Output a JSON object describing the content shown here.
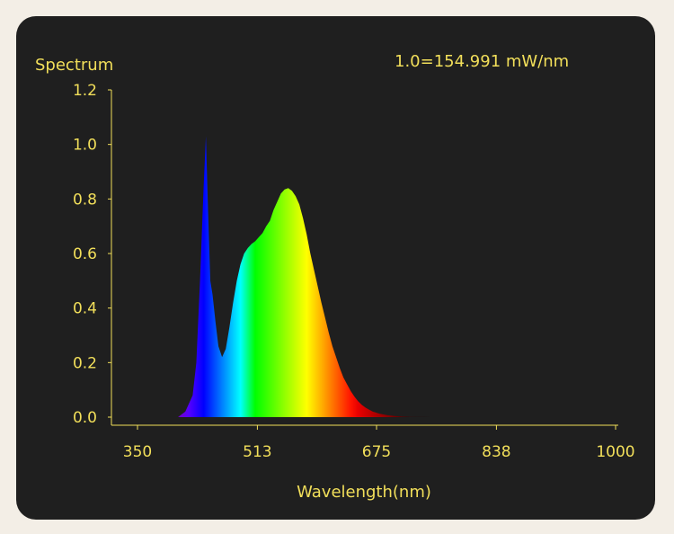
{
  "chart_data": {
    "type": "area",
    "title": "Spectrum",
    "annotation": "1.0=154.991 mW/nm",
    "xlabel": "Wavelength(nm)",
    "ylabel": "",
    "xlim": [
      350,
      1000
    ],
    "ylim": [
      0,
      1.2
    ],
    "x_ticks": [
      "350",
      "513",
      "675",
      "838",
      "1000"
    ],
    "y_ticks": [
      "0.0",
      "0.2",
      "0.4",
      "0.6",
      "0.8",
      "1.0",
      "1.2"
    ],
    "legend": "none",
    "grid": false,
    "colors": {
      "text": "#f2df5a",
      "axis": "#f2df5a",
      "background": "#1f1f1f"
    },
    "series": [
      {
        "x": [
          405,
          415,
          425,
          430,
          435,
          440,
          443,
          446,
          449,
          452,
          456,
          460,
          465,
          470,
          475,
          480,
          485,
          490,
          495,
          500,
          505,
          510,
          515,
          520,
          525,
          530,
          535,
          540,
          545,
          550,
          555,
          560,
          565,
          570,
          575,
          580,
          585,
          590,
          595,
          600,
          605,
          610,
          615,
          620,
          625,
          630,
          635,
          640,
          645,
          650,
          655,
          660,
          665,
          670,
          675,
          680,
          690,
          700,
          710,
          720,
          730,
          740,
          750,
          760,
          770
        ],
        "values": [
          0.0,
          0.02,
          0.08,
          0.2,
          0.5,
          0.85,
          1.03,
          0.75,
          0.5,
          0.45,
          0.35,
          0.26,
          0.22,
          0.25,
          0.33,
          0.42,
          0.5,
          0.56,
          0.6,
          0.62,
          0.635,
          0.645,
          0.66,
          0.675,
          0.7,
          0.72,
          0.76,
          0.79,
          0.82,
          0.835,
          0.84,
          0.83,
          0.81,
          0.78,
          0.73,
          0.67,
          0.6,
          0.54,
          0.48,
          0.42,
          0.365,
          0.31,
          0.26,
          0.22,
          0.18,
          0.145,
          0.12,
          0.095,
          0.075,
          0.058,
          0.045,
          0.035,
          0.027,
          0.02,
          0.016,
          0.012,
          0.007,
          0.004,
          0.002,
          0.001,
          0.0006,
          0.0003,
          0.0001,
          0.0,
          0.0
        ]
      }
    ]
  }
}
